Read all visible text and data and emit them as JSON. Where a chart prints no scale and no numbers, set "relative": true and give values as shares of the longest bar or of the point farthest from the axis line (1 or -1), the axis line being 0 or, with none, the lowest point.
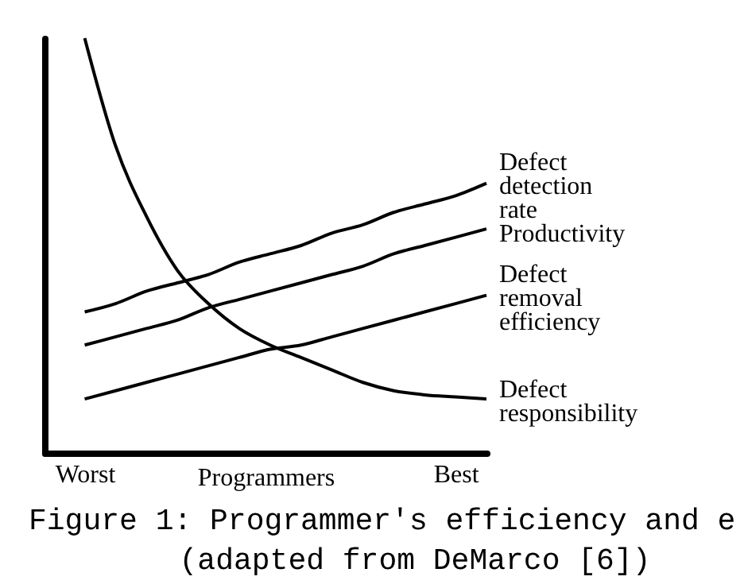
{
  "chart_data": {
    "type": "line",
    "relative": true,
    "xlabel": "Programmers",
    "categories": [
      "Worst",
      null,
      null,
      null,
      null,
      null,
      null,
      null,
      null,
      null,
      null,
      null,
      "Best",
      null
    ],
    "tick_labels": "x",
    "grid": false,
    "series": [
      {
        "name": "Defect detection rate",
        "color": "#000000",
        "values": [
          0.34,
          0.36,
          0.39,
          0.41,
          0.43,
          0.46,
          0.48,
          0.5,
          0.53,
          0.55,
          0.58,
          0.6,
          0.62,
          0.65
        ]
      },
      {
        "name": "Productivity",
        "color": "#000000",
        "values": [
          0.26,
          0.28,
          0.3,
          0.32,
          0.35,
          0.37,
          0.39,
          0.41,
          0.43,
          0.45,
          0.48,
          0.5,
          0.52,
          0.54
        ]
      },
      {
        "name": "Defect removal efficiency",
        "color": "#000000",
        "values": [
          0.13,
          0.15,
          0.17,
          0.19,
          0.21,
          0.23,
          0.25,
          0.26,
          0.28,
          0.3,
          0.32,
          0.34,
          0.36,
          0.38
        ]
      },
      {
        "name": "Defect responsibility",
        "color": "#000000",
        "values": [
          1.0,
          0.74,
          0.57,
          0.44,
          0.36,
          0.3,
          0.26,
          0.23,
          0.2,
          0.17,
          0.15,
          0.14,
          0.135,
          0.13
        ]
      }
    ],
    "annotations": [
      "Figure 1: Programmer's efficiency and e",
      "(adapted from DeMarco [6])"
    ]
  }
}
